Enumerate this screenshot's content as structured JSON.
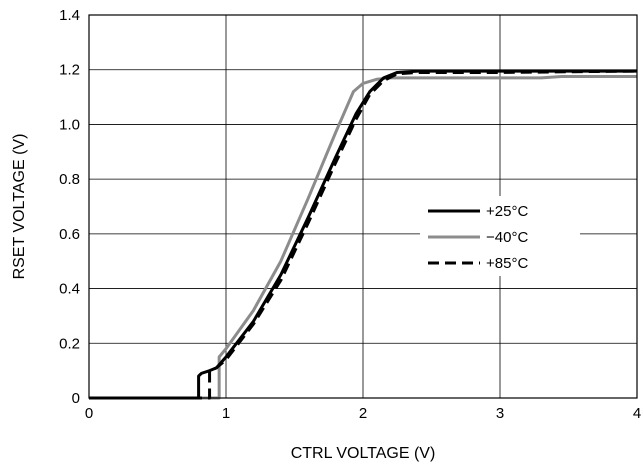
{
  "chart_data": {
    "type": "line",
    "title": "",
    "xlabel": "CTRL VOLTAGE (V)",
    "ylabel": "RSET VOLTAGE (V)",
    "xlim": [
      0,
      4
    ],
    "ylim": [
      0,
      1.4
    ],
    "xticks": [
      0,
      1,
      2,
      3,
      4
    ],
    "xtick_labels": [
      "0",
      "1",
      "2",
      "3",
      "4"
    ],
    "yticks": [
      0,
      0.2,
      0.4,
      0.6,
      0.8,
      1.0,
      1.2,
      1.4
    ],
    "ytick_labels": [
      "0",
      "0.2",
      "0.4",
      "0.6",
      "0.8",
      "1.0",
      "1.2",
      "1.4"
    ],
    "grid": true,
    "legend_position": "right-middle",
    "series": [
      {
        "name": "+25°C",
        "color": "#000000",
        "style": "solid",
        "points": [
          [
            0,
            0
          ],
          [
            0.8,
            0
          ],
          [
            0.8,
            0.08
          ],
          [
            0.82,
            0.09
          ],
          [
            0.88,
            0.1
          ],
          [
            0.93,
            0.11
          ],
          [
            1.0,
            0.15
          ],
          [
            1.2,
            0.28
          ],
          [
            1.4,
            0.45
          ],
          [
            1.6,
            0.66
          ],
          [
            1.8,
            0.88
          ],
          [
            1.95,
            1.04
          ],
          [
            2.05,
            1.12
          ],
          [
            2.15,
            1.17
          ],
          [
            2.25,
            1.19
          ],
          [
            2.4,
            1.195
          ],
          [
            3.0,
            1.195
          ],
          [
            4.0,
            1.195
          ]
        ]
      },
      {
        "name": "−40°C",
        "color": "#8c8c8c",
        "style": "solid",
        "points": [
          [
            0,
            0
          ],
          [
            0.95,
            0
          ],
          [
            0.95,
            0.15
          ],
          [
            1.0,
            0.18
          ],
          [
            1.2,
            0.32
          ],
          [
            1.4,
            0.5
          ],
          [
            1.6,
            0.73
          ],
          [
            1.8,
            0.97
          ],
          [
            1.93,
            1.12
          ],
          [
            2.0,
            1.15
          ],
          [
            2.1,
            1.165
          ],
          [
            2.2,
            1.17
          ],
          [
            3.3,
            1.17
          ],
          [
            3.45,
            1.175
          ],
          [
            4.0,
            1.175
          ]
        ]
      },
      {
        "name": "+85°C",
        "color": "#000000",
        "style": "dashed",
        "points": [
          [
            0,
            0
          ],
          [
            0.88,
            0
          ],
          [
            0.88,
            0.1
          ],
          [
            0.93,
            0.11
          ],
          [
            1.0,
            0.14
          ],
          [
            1.2,
            0.27
          ],
          [
            1.4,
            0.43
          ],
          [
            1.6,
            0.64
          ],
          [
            1.8,
            0.86
          ],
          [
            1.95,
            1.02
          ],
          [
            2.05,
            1.11
          ],
          [
            2.15,
            1.16
          ],
          [
            2.25,
            1.185
          ],
          [
            2.4,
            1.19
          ],
          [
            3.0,
            1.19
          ],
          [
            4.0,
            1.195
          ]
        ]
      }
    ]
  }
}
